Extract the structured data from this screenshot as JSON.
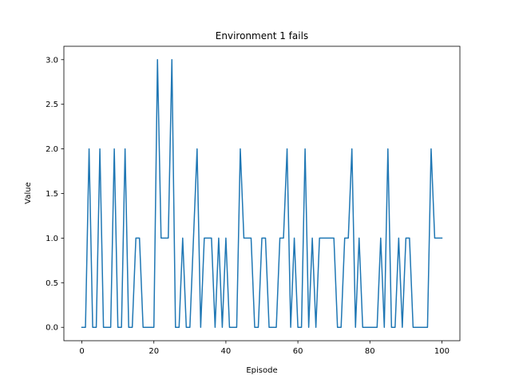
{
  "chart_data": {
    "type": "line",
    "title": "Environment 1 fails",
    "xlabel": "Episode",
    "ylabel": "Value",
    "xlim": [
      -5,
      105
    ],
    "ylim": [
      -0.15,
      3.15
    ],
    "xticks": [
      0,
      20,
      40,
      60,
      80,
      100
    ],
    "yticks": [
      0.0,
      0.5,
      1.0,
      1.5,
      2.0,
      2.5,
      3.0
    ],
    "xtick_labels": [
      "0",
      "20",
      "40",
      "60",
      "80",
      "100"
    ],
    "ytick_labels": [
      "0.0",
      "0.5",
      "1.0",
      "1.5",
      "2.0",
      "2.5",
      "3.0"
    ],
    "grid": false,
    "series": [
      {
        "color": "#1f77b4",
        "x": [
          0,
          1,
          2,
          3,
          4,
          5,
          6,
          7,
          8,
          9,
          10,
          11,
          12,
          13,
          14,
          15,
          16,
          17,
          18,
          19,
          20,
          21,
          22,
          23,
          24,
          25,
          26,
          27,
          28,
          29,
          30,
          31,
          32,
          33,
          34,
          35,
          36,
          37,
          38,
          39,
          40,
          41,
          42,
          43,
          44,
          45,
          46,
          47,
          48,
          49,
          50,
          51,
          52,
          53,
          54,
          55,
          56,
          57,
          58,
          59,
          60,
          61,
          62,
          63,
          64,
          65,
          66,
          67,
          68,
          69,
          70,
          71,
          72,
          73,
          74,
          75,
          76,
          77,
          78,
          79,
          80,
          81,
          82,
          83,
          84,
          85,
          86,
          87,
          88,
          89,
          90,
          91,
          92,
          93,
          94,
          95,
          96,
          97,
          98,
          99,
          100
        ],
        "y": [
          0,
          0,
          2,
          0,
          0,
          2,
          0,
          0,
          0,
          2,
          0,
          0,
          2,
          0,
          0,
          1,
          1,
          0,
          0,
          0,
          0,
          3,
          1,
          1,
          1,
          3,
          0,
          0,
          1,
          0,
          0,
          1,
          2,
          0,
          1,
          1,
          1,
          0,
          1,
          0,
          1,
          0,
          0,
          0,
          2,
          1,
          1,
          1,
          0,
          0,
          1,
          1,
          0,
          0,
          0,
          1,
          1,
          2,
          0,
          1,
          0,
          0,
          2,
          0,
          1,
          0,
          1,
          1,
          1,
          1,
          1,
          0,
          0,
          1,
          1,
          2,
          0,
          1,
          0,
          0,
          0,
          0,
          0,
          1,
          0,
          2,
          0,
          0,
          1,
          0,
          1,
          1,
          0,
          0,
          0,
          0,
          0,
          2,
          1,
          1,
          1
        ]
      }
    ]
  }
}
